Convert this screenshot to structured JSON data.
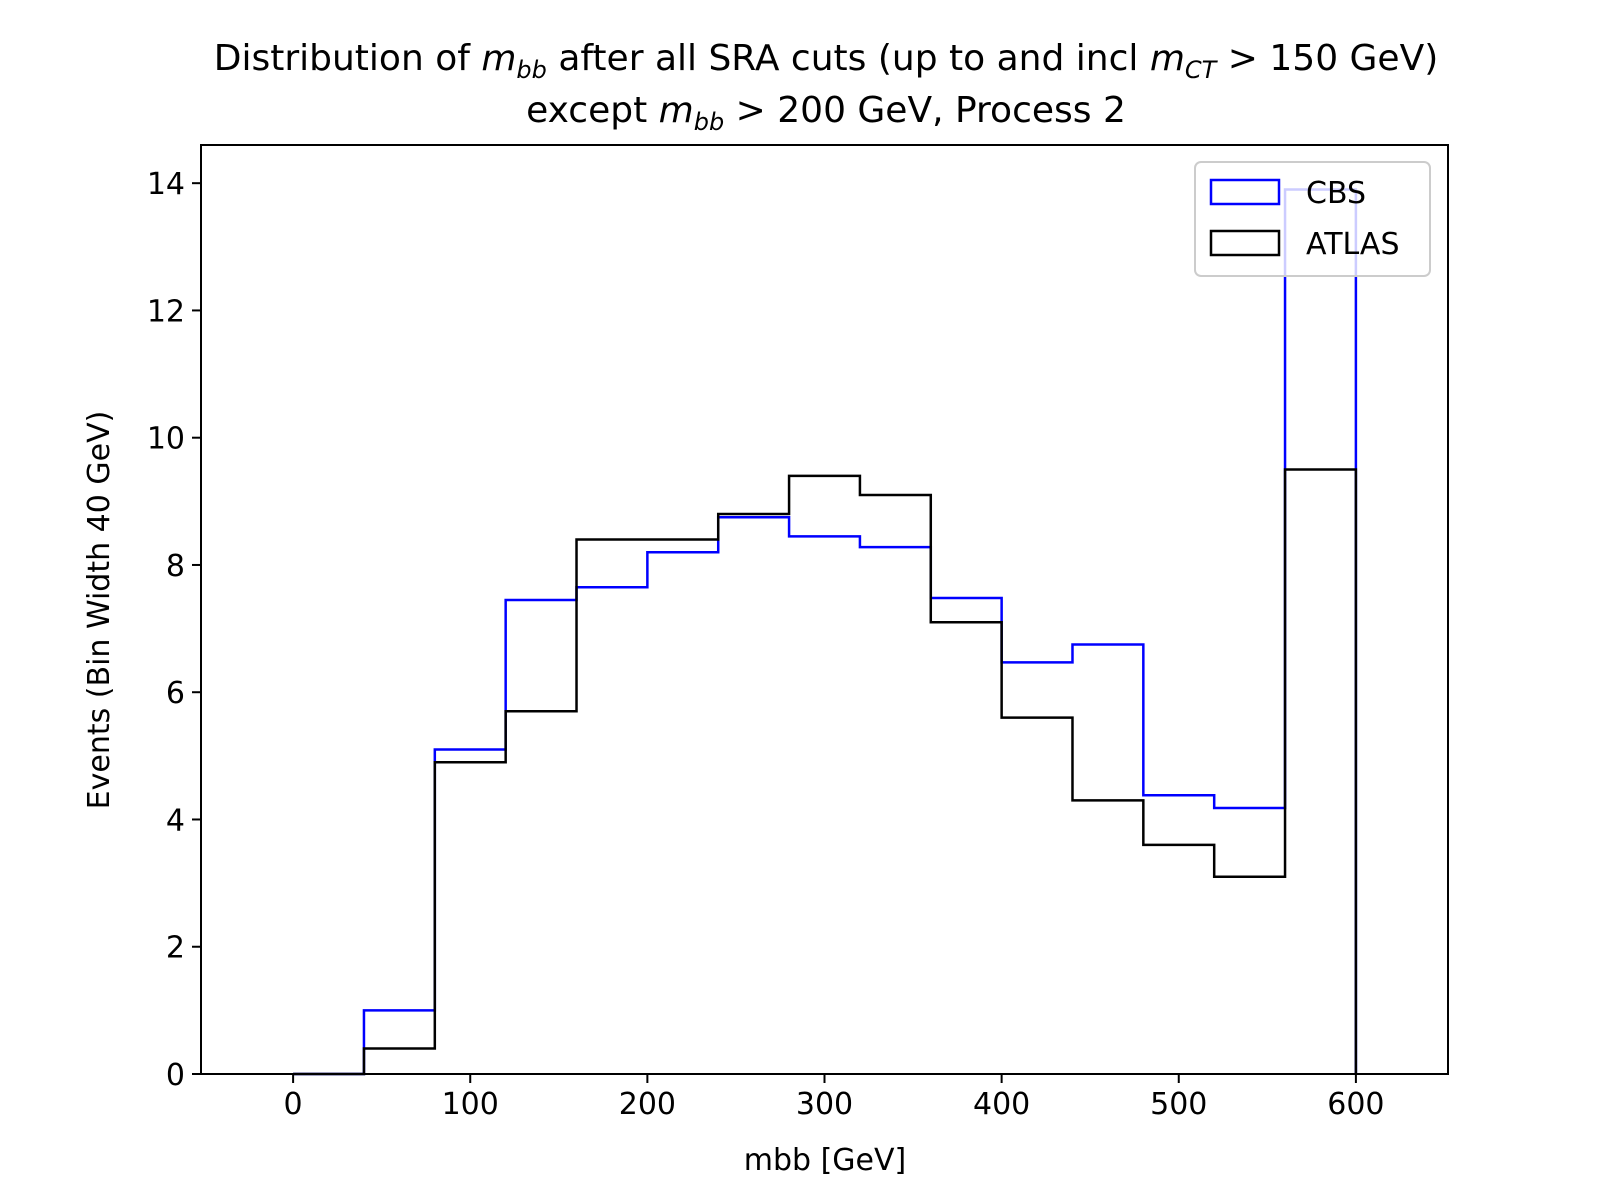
{
  "chart_data": {
    "type": "histogram-step",
    "title_line1_a": "Distribution of ",
    "title_line1_mathA": "m",
    "title_line1_mathA_sub": "bb",
    "title_line1_b": " after all SRA cuts (up to and incl ",
    "title_line1_mathB": "m",
    "title_line1_mathB_sub": "CT",
    "title_line1_c": " > 150 GeV)",
    "title_line2_a": "except ",
    "title_line2_math": "m",
    "title_line2_math_sub": "bb",
    "title_line2_b": " > 200 GeV, Process 2",
    "xlabel": "mbb [GeV]",
    "ylabel": "Events (Bin Width 40 GeV)",
    "xlim": [
      -52,
      652
    ],
    "ylim": [
      0,
      14.6
    ],
    "xticks": [
      0,
      100,
      200,
      300,
      400,
      500,
      600
    ],
    "yticks": [
      0,
      2,
      4,
      6,
      8,
      10,
      12,
      14
    ],
    "bin_edges": [
      0,
      40,
      80,
      120,
      160,
      200,
      240,
      280,
      320,
      360,
      400,
      440,
      480,
      520,
      560,
      600
    ],
    "series": [
      {
        "name": "CBS",
        "color": "#0000ff",
        "values": [
          0,
          1.0,
          5.1,
          7.45,
          7.65,
          8.2,
          8.75,
          8.45,
          8.28,
          7.48,
          6.47,
          6.75,
          4.38,
          4.18,
          13.9
        ]
      },
      {
        "name": "ATLAS",
        "color": "#000000",
        "values": [
          0,
          0.4,
          4.9,
          5.7,
          8.4,
          8.4,
          8.8,
          9.4,
          9.1,
          7.1,
          5.6,
          4.3,
          3.6,
          3.1,
          9.5
        ]
      }
    ],
    "legend_position": "top-right",
    "grid": false
  }
}
